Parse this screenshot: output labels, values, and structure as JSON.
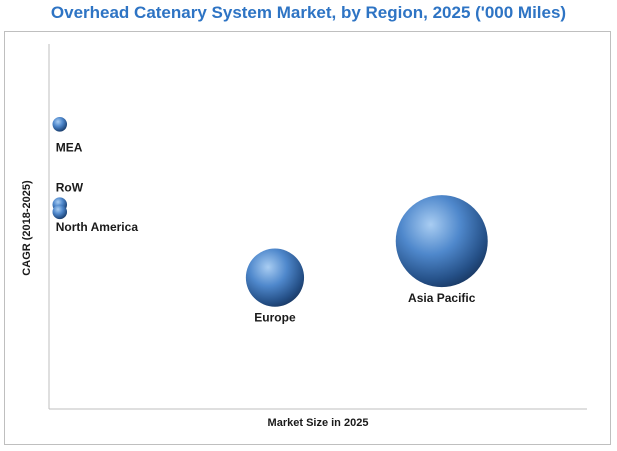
{
  "chart_data": {
    "type": "scatter",
    "title": "Overhead Catenary System Market, by Region, 2025 ('000 Miles)",
    "xlabel": "Market Size in 2025",
    "ylabel": "CAGR (2018-2025)",
    "xlim": [
      0,
      100
    ],
    "ylim": [
      0,
      100
    ],
    "grid": false,
    "legend": "none",
    "points": [
      {
        "label": "MEA",
        "x": 2,
        "y": 78,
        "size": 2.5
      },
      {
        "label": "RoW",
        "x": 2,
        "y": 56,
        "size": 2.5
      },
      {
        "label": "North America",
        "x": 2,
        "y": 54,
        "size": 2.5
      },
      {
        "label": "Europe",
        "x": 42,
        "y": 36,
        "size": 40
      },
      {
        "label": "Asia Pacific",
        "x": 73,
        "y": 46,
        "size": 100
      }
    ],
    "bubble_color": "#3a74b8"
  }
}
